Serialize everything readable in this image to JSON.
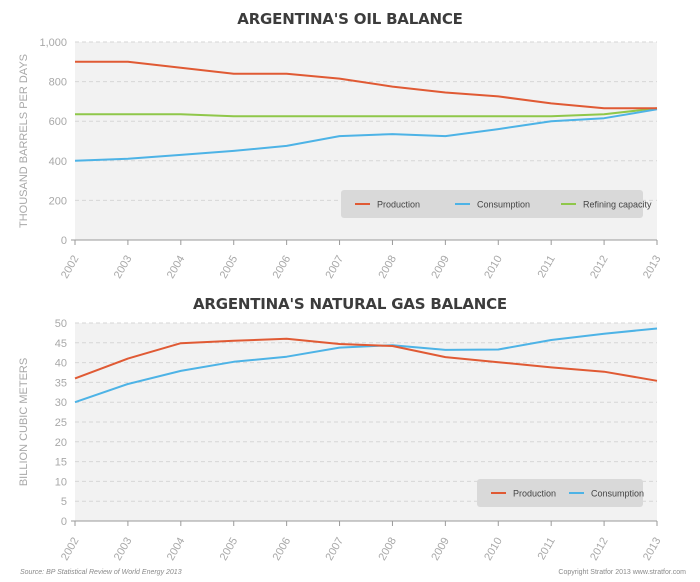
{
  "colors": {
    "production": "#e05a34",
    "consumption": "#4db3e6",
    "refining": "#8fc74a",
    "plot_background": "#f2f2f2",
    "grid": "#d6d6d6",
    "axis_text": "#a8a8a8",
    "legend_background": "#d9d9d9"
  },
  "footer": {
    "source": "Source: BP Statistical Review of World Energy 2013",
    "copyright": "Copyright Stratfor 2013    www.stratfor.com"
  },
  "chart_data": [
    {
      "type": "line",
      "title": "ARGENTINA'S OIL BALANCE",
      "ylabel": "THOUSAND BARRELS PER DAYS",
      "xlabel": "",
      "ylim": [
        0,
        1000
      ],
      "yticks": [
        0,
        200,
        400,
        600,
        800,
        1000
      ],
      "ytick_labels": [
        "0",
        "200",
        "400",
        "600",
        "800",
        "1,000"
      ],
      "categories": [
        "2002",
        "2003",
        "2004",
        "2005",
        "2006",
        "2007",
        "2008",
        "2009",
        "2010",
        "2011",
        "2012",
        "2013"
      ],
      "grid": true,
      "legend_position": "bottom-right",
      "series": [
        {
          "name": "Production",
          "color_key": "production",
          "values": [
            900,
            900,
            870,
            840,
            840,
            815,
            775,
            745,
            725,
            690,
            665,
            665
          ]
        },
        {
          "name": "Consumption",
          "color_key": "consumption",
          "values": [
            400,
            410,
            430,
            450,
            475,
            525,
            535,
            525,
            560,
            600,
            615,
            660
          ]
        },
        {
          "name": "Refining capacity",
          "color_key": "refining",
          "values": [
            635,
            635,
            635,
            625,
            625,
            625,
            625,
            625,
            625,
            625,
            635,
            665
          ]
        }
      ]
    },
    {
      "type": "line",
      "title": "ARGENTINA'S NATURAL GAS BALANCE",
      "ylabel": "BILLION CUBIC METERS",
      "xlabel": "",
      "ylim": [
        0,
        50
      ],
      "yticks": [
        0,
        5,
        10,
        15,
        20,
        25,
        30,
        35,
        40,
        45,
        50
      ],
      "ytick_labels": [
        "0",
        "5",
        "10",
        "15",
        "20",
        "25",
        "30",
        "35",
        "40",
        "45",
        "50"
      ],
      "categories": [
        "2002",
        "2003",
        "2004",
        "2005",
        "2006",
        "2007",
        "2008",
        "2009",
        "2010",
        "2011",
        "2012",
        "2013"
      ],
      "grid": true,
      "legend_position": "bottom-right",
      "series": [
        {
          "name": "Production",
          "color_key": "production",
          "values": [
            36,
            41,
            44.9,
            45.5,
            46,
            44.7,
            44.2,
            41.4,
            40.1,
            38.8,
            37.7,
            35.4
          ]
        },
        {
          "name": "Consumption",
          "color_key": "consumption",
          "values": [
            30,
            34.6,
            37.9,
            40.2,
            41.5,
            43.8,
            44.4,
            43.2,
            43.3,
            45.7,
            47.3,
            48.6
          ]
        }
      ]
    }
  ]
}
